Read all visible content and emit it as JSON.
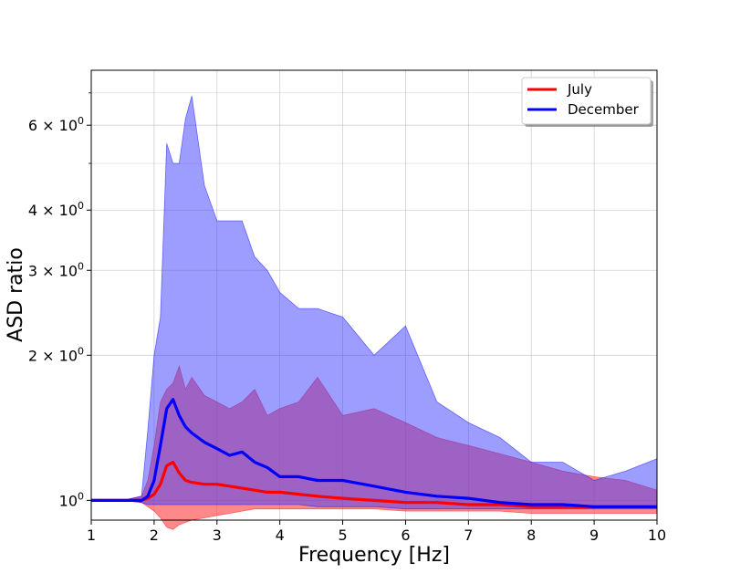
{
  "chart_data": {
    "type": "area",
    "xlabel": "Frequency [Hz]",
    "ylabel": "ASD ratio",
    "xlim": [
      1,
      10
    ],
    "ylim": [
      0.91,
      7.8
    ],
    "yscale": "log",
    "grid": true,
    "legend_position": "top-right",
    "x_ticks": [
      "1",
      "2",
      "3",
      "4",
      "5",
      "6",
      "7",
      "8",
      "9",
      "10"
    ],
    "y_ticks": [
      {
        "value": 1,
        "label": "10⁰",
        "base": "10",
        "exp": "0"
      },
      {
        "value": 2,
        "label": "2 × 10⁰",
        "base": "2 × 10",
        "exp": "0"
      },
      {
        "value": 3,
        "label": "3 × 10⁰",
        "base": "3 × 10",
        "exp": "0"
      },
      {
        "value": 4,
        "label": "4 × 10⁰",
        "base": "4 × 10",
        "exp": "0"
      },
      {
        "value": 6,
        "label": "6 × 10⁰",
        "base": "6 × 10",
        "exp": "0"
      }
    ],
    "y_minor_ticks": [
      5,
      7
    ],
    "series": [
      {
        "name": "July",
        "color": "#ff0000",
        "band_color": "#ff3b3b",
        "x": [
          1.0,
          1.5,
          1.8,
          1.9,
          2.0,
          2.1,
          2.2,
          2.3,
          2.4,
          2.5,
          2.6,
          2.8,
          3.0,
          3.2,
          3.4,
          3.6,
          3.8,
          4.0,
          4.3,
          4.6,
          5.0,
          5.5,
          6.0,
          6.5,
          7.0,
          7.5,
          8.0,
          8.5,
          9.0,
          9.5,
          10.0
        ],
        "median": [
          1.0,
          1.0,
          1.0,
          1.01,
          1.03,
          1.08,
          1.18,
          1.2,
          1.14,
          1.1,
          1.09,
          1.08,
          1.08,
          1.07,
          1.06,
          1.05,
          1.04,
          1.04,
          1.03,
          1.02,
          1.01,
          1.0,
          0.99,
          0.99,
          0.98,
          0.98,
          0.97,
          0.97,
          0.97,
          0.97,
          0.97
        ],
        "lower": [
          1.0,
          1.0,
          0.99,
          0.97,
          0.95,
          0.92,
          0.88,
          0.87,
          0.89,
          0.9,
          0.91,
          0.92,
          0.93,
          0.94,
          0.95,
          0.96,
          0.96,
          0.96,
          0.96,
          0.96,
          0.96,
          0.96,
          0.95,
          0.95,
          0.95,
          0.95,
          0.94,
          0.94,
          0.94,
          0.94,
          0.94
        ],
        "upper": [
          1.0,
          1.0,
          1.02,
          1.1,
          1.3,
          1.6,
          1.7,
          1.75,
          1.9,
          1.7,
          1.8,
          1.65,
          1.6,
          1.55,
          1.6,
          1.7,
          1.5,
          1.55,
          1.6,
          1.8,
          1.5,
          1.55,
          1.45,
          1.35,
          1.3,
          1.25,
          1.2,
          1.15,
          1.12,
          1.1,
          1.05
        ]
      },
      {
        "name": "December",
        "color": "#0000ff",
        "band_color": "#3b3bff",
        "x": [
          1.0,
          1.5,
          1.8,
          1.9,
          2.0,
          2.1,
          2.2,
          2.3,
          2.4,
          2.5,
          2.6,
          2.8,
          3.0,
          3.2,
          3.4,
          3.6,
          3.8,
          4.0,
          4.3,
          4.6,
          5.0,
          5.5,
          6.0,
          6.5,
          7.0,
          7.5,
          8.0,
          8.5,
          9.0,
          9.5,
          10.0
        ],
        "median": [
          1.0,
          1.0,
          1.0,
          1.02,
          1.1,
          1.3,
          1.55,
          1.62,
          1.5,
          1.42,
          1.38,
          1.32,
          1.28,
          1.24,
          1.26,
          1.2,
          1.17,
          1.12,
          1.12,
          1.1,
          1.1,
          1.07,
          1.04,
          1.02,
          1.01,
          0.99,
          0.98,
          0.98,
          0.97,
          0.97,
          0.97
        ],
        "lower": [
          1.0,
          1.0,
          0.99,
          0.98,
          0.98,
          0.98,
          0.98,
          0.98,
          0.98,
          0.98,
          0.98,
          0.98,
          0.98,
          0.98,
          0.98,
          0.98,
          0.98,
          0.98,
          0.98,
          0.97,
          0.97,
          0.97,
          0.96,
          0.96,
          0.96,
          0.96,
          0.96,
          0.96,
          0.96,
          0.96,
          0.96
        ],
        "upper": [
          1.0,
          1.0,
          1.02,
          1.4,
          2.0,
          2.4,
          5.5,
          5.0,
          5.0,
          6.2,
          6.9,
          4.5,
          3.8,
          3.8,
          3.8,
          3.2,
          3.0,
          2.7,
          2.5,
          2.5,
          2.4,
          2.0,
          2.3,
          1.6,
          1.45,
          1.35,
          1.2,
          1.2,
          1.1,
          1.15,
          1.22
        ]
      }
    ]
  }
}
